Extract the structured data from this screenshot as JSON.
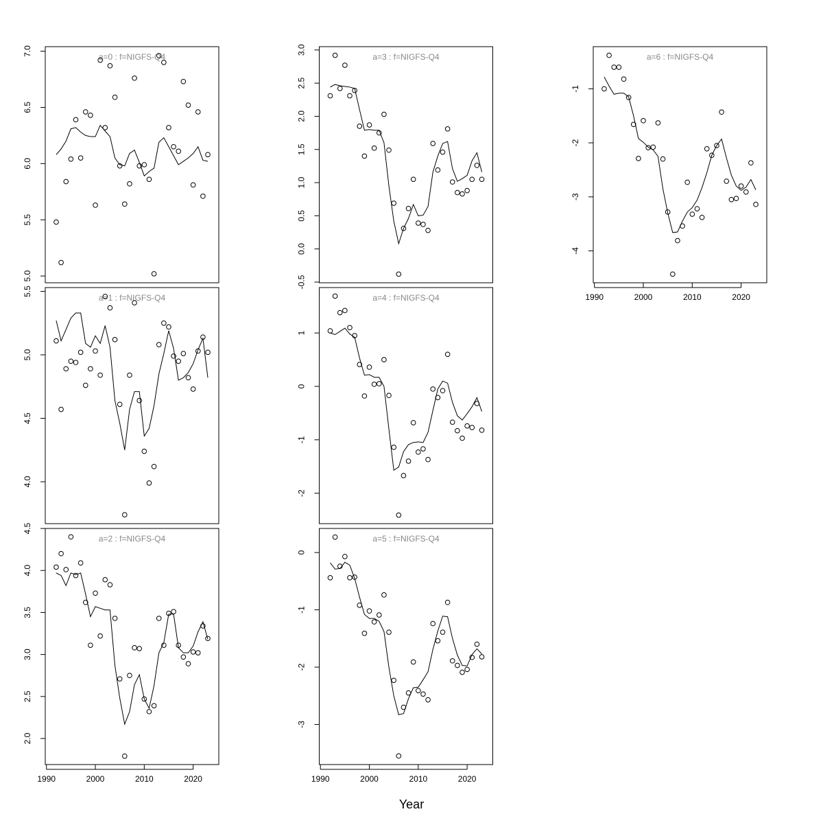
{
  "xlabel": "Year",
  "chart_data": [
    {
      "type": "line",
      "title": "a=0  :  f=NIGFS-Q4",
      "x": [
        1992,
        1993,
        1994,
        1995,
        1996,
        1997,
        1998,
        1999,
        2000,
        2001,
        2002,
        2003,
        2004,
        2005,
        2006,
        2007,
        2008,
        2009,
        2010,
        2011,
        2012,
        2013,
        2014,
        2015,
        2016,
        2017,
        2018,
        2019,
        2020,
        2021,
        2022,
        2023
      ],
      "series": [
        {
          "style": "points",
          "color": "#000000",
          "values": [
            5.48,
            5.12,
            5.84,
            6.04,
            6.39,
            6.05,
            6.46,
            6.43,
            5.63,
            6.92,
            6.32,
            6.87,
            6.59,
            5.98,
            5.64,
            5.82,
            6.76,
            5.98,
            5.99,
            5.86,
            5.02,
            6.96,
            6.9,
            6.32,
            6.15,
            6.11,
            6.73,
            6.52,
            5.81,
            6.46,
            5.71,
            6.08
          ]
        },
        {
          "style": "line",
          "color": "#000000",
          "values": [
            6.08,
            6.13,
            6.2,
            6.31,
            6.32,
            6.28,
            6.25,
            6.24,
            6.24,
            6.34,
            6.29,
            6.24,
            6.05,
            5.99,
            5.98,
            6.09,
            6.12,
            6.01,
            5.89,
            5.93,
            5.96,
            6.19,
            6.23,
            6.15,
            6.07,
            5.99,
            6.02,
            6.05,
            6.09,
            6.15,
            6.03,
            6.02
          ]
        }
      ],
      "xlim": [
        1989.76,
        2025.24
      ],
      "ylim": [
        4.94,
        7.04
      ],
      "yticks": [
        {
          "value": 5,
          "label": "5.0"
        },
        5.5,
        {
          "value": 6,
          "label": "6.0"
        },
        6.5,
        {
          "value": 7,
          "label": "7.0"
        }
      ]
    },
    {
      "type": "line",
      "title": "a=1  :  f=NIGFS-Q4",
      "x": [
        1992,
        1993,
        1994,
        1995,
        1996,
        1997,
        1998,
        1999,
        2000,
        2001,
        2002,
        2003,
        2004,
        2005,
        2006,
        2007,
        2008,
        2009,
        2010,
        2011,
        2012,
        2013,
        2014,
        2015,
        2016,
        2017,
        2018,
        2019,
        2020,
        2021,
        2022,
        2023
      ],
      "series": [
        {
          "style": "points",
          "color": "#000000",
          "values": [
            5.11,
            4.57,
            4.89,
            4.95,
            4.94,
            5.02,
            4.76,
            4.89,
            5.03,
            4.84,
            5.46,
            5.37,
            5.12,
            4.61,
            3.74,
            4.84,
            5.41,
            4.64,
            4.24,
            3.99,
            4.12,
            5.08,
            5.25,
            5.22,
            4.99,
            4.95,
            5.01,
            4.82,
            4.73,
            5.03,
            5.14,
            5.02
          ]
        },
        {
          "style": "line",
          "color": "#000000",
          "values": [
            5.27,
            5.11,
            5.2,
            5.29,
            5.33,
            5.33,
            5.09,
            5.06,
            5.15,
            5.09,
            5.23,
            5.06,
            4.64,
            4.46,
            4.25,
            4.57,
            4.71,
            4.71,
            4.36,
            4.42,
            4.6,
            4.85,
            5.01,
            5.19,
            5.05,
            4.8,
            4.82,
            4.86,
            4.93,
            5.04,
            5.13,
            4.82
          ]
        }
      ],
      "xlim": [
        1989.76,
        2025.24
      ],
      "ylim": [
        3.67,
        5.53
      ],
      "yticks": [
        {
          "value": 4,
          "label": "4.0"
        },
        4.5,
        {
          "value": 5,
          "label": "5.0"
        },
        5.5
      ]
    },
    {
      "type": "line",
      "title": "a=2  :  f=NIGFS-Q4",
      "x": [
        1992,
        1993,
        1994,
        1995,
        1996,
        1997,
        1998,
        1999,
        2000,
        2001,
        2002,
        2003,
        2004,
        2005,
        2006,
        2007,
        2008,
        2009,
        2010,
        2011,
        2012,
        2013,
        2014,
        2015,
        2016,
        2017,
        2018,
        2019,
        2020,
        2021,
        2022,
        2023
      ],
      "series": [
        {
          "style": "points",
          "color": "#000000",
          "values": [
            4.04,
            4.2,
            4.01,
            4.4,
            3.94,
            4.09,
            3.62,
            3.11,
            3.73,
            3.22,
            3.89,
            3.83,
            3.43,
            2.71,
            1.79,
            2.75,
            3.08,
            3.07,
            2.47,
            2.32,
            2.39,
            3.43,
            3.11,
            3.49,
            3.51,
            3.11,
            2.97,
            2.89,
            3.03,
            3.02,
            3.34,
            3.19
          ]
        },
        {
          "style": "line",
          "color": "#000000",
          "values": [
            3.97,
            3.94,
            3.82,
            3.97,
            3.95,
            3.97,
            3.72,
            3.45,
            3.57,
            3.55,
            3.53,
            3.53,
            2.87,
            2.48,
            2.17,
            2.32,
            2.64,
            2.76,
            2.47,
            2.36,
            2.63,
            3.02,
            3.14,
            3.48,
            3.48,
            3.08,
            3.02,
            3.02,
            3.1,
            3.27,
            3.39,
            3.18
          ]
        }
      ],
      "xlim": [
        1989.76,
        2025.24
      ],
      "ylim": [
        1.69,
        4.5
      ],
      "xticks": [
        1990,
        2000,
        2010,
        2020
      ],
      "yticks": [
        {
          "value": 2,
          "label": "2.0"
        },
        2.5,
        {
          "value": 3,
          "label": "3.0"
        },
        3.5,
        {
          "value": 4,
          "label": "4.0"
        },
        4.5
      ]
    },
    {
      "type": "line",
      "title": "a=3  :  f=NIGFS-Q4",
      "x": [
        1992,
        1993,
        1994,
        1995,
        1996,
        1997,
        1998,
        1999,
        2000,
        2001,
        2002,
        2003,
        2004,
        2005,
        2006,
        2007,
        2008,
        2009,
        2010,
        2011,
        2012,
        2013,
        2014,
        2015,
        2016,
        2017,
        2018,
        2019,
        2020,
        2021,
        2022,
        2023
      ],
      "series": [
        {
          "style": "points",
          "color": "#000000",
          "values": [
            2.31,
            2.92,
            2.42,
            2.77,
            2.31,
            2.39,
            1.85,
            1.4,
            1.87,
            1.52,
            1.75,
            2.03,
            1.49,
            0.69,
            -0.38,
            0.31,
            0.61,
            1.05,
            0.39,
            0.37,
            0.28,
            1.59,
            1.19,
            1.46,
            1.81,
            1.01,
            0.85,
            0.83,
            0.88,
            1.05,
            1.26,
            1.05
          ]
        },
        {
          "style": "line",
          "color": "#000000",
          "values": [
            2.44,
            2.48,
            2.46,
            2.45,
            2.44,
            2.42,
            2.1,
            1.79,
            1.8,
            1.79,
            1.79,
            1.6,
            0.95,
            0.42,
            0.08,
            0.31,
            0.46,
            0.67,
            0.5,
            0.51,
            0.64,
            1.16,
            1.4,
            1.59,
            1.62,
            1.21,
            1.02,
            1.06,
            1.11,
            1.33,
            1.45,
            1.16
          ]
        }
      ],
      "xlim": [
        1989.76,
        2025.24
      ],
      "ylim": [
        -0.51,
        3.05
      ],
      "yticks": [
        -0.5,
        {
          "value": 0,
          "label": "0.0"
        },
        0.5,
        {
          "value": 1,
          "label": "1.0"
        },
        1.5,
        {
          "value": 2,
          "label": "2.0"
        },
        2.5,
        {
          "value": 3,
          "label": "3.0"
        }
      ]
    },
    {
      "type": "line",
      "title": "a=4  :  f=NIGFS-Q4",
      "x": [
        1992,
        1993,
        1994,
        1995,
        1996,
        1997,
        1998,
        1999,
        2000,
        2001,
        2002,
        2003,
        2004,
        2005,
        2006,
        2007,
        2008,
        2009,
        2010,
        2011,
        2012,
        2013,
        2014,
        2015,
        2016,
        2017,
        2018,
        2019,
        2020,
        2021,
        2022,
        2023
      ],
      "series": [
        {
          "style": "points",
          "color": "#000000",
          "values": [
            1.04,
            1.69,
            1.38,
            1.42,
            1.1,
            0.95,
            0.41,
            -0.18,
            0.36,
            0.04,
            0.05,
            0.5,
            -0.17,
            -1.14,
            -2.41,
            -1.67,
            -1.4,
            -0.68,
            -1.23,
            -1.17,
            -1.37,
            -0.05,
            -0.21,
            -0.08,
            0.6,
            -0.67,
            -0.83,
            -0.97,
            -0.74,
            -0.77,
            -0.32,
            -0.82
          ]
        },
        {
          "style": "line",
          "color": "#000000",
          "values": [
            1.0,
            0.97,
            1.03,
            1.09,
            0.98,
            0.92,
            0.53,
            0.21,
            0.22,
            0.17,
            0.17,
            0.0,
            -0.8,
            -1.57,
            -1.51,
            -1.22,
            -1.09,
            -1.05,
            -1.04,
            -1.05,
            -0.86,
            -0.45,
            -0.05,
            0.1,
            0.06,
            -0.3,
            -0.55,
            -0.63,
            -0.51,
            -0.38,
            -0.21,
            -0.47
          ]
        }
      ],
      "xlim": [
        1989.76,
        2025.24
      ],
      "ylim": [
        -2.57,
        1.85
      ],
      "yticks": [
        -2,
        -1,
        0,
        1
      ]
    },
    {
      "type": "line",
      "title": "a=5  :  f=NIGFS-Q4",
      "x": [
        1992,
        1993,
        1994,
        1995,
        1996,
        1997,
        1998,
        1999,
        2000,
        2001,
        2002,
        2003,
        2004,
        2005,
        2006,
        2007,
        2008,
        2009,
        2010,
        2011,
        2012,
        2013,
        2014,
        2015,
        2016,
        2017,
        2018,
        2019,
        2020,
        2021,
        2022,
        2023
      ],
      "series": [
        {
          "style": "points",
          "color": "#000000",
          "values": [
            -0.44,
            0.27,
            -0.24,
            -0.07,
            -0.44,
            -0.43,
            -0.92,
            -1.41,
            -1.02,
            -1.21,
            -1.09,
            -0.74,
            -1.39,
            -2.23,
            -3.55,
            -2.7,
            -2.45,
            -1.91,
            -2.41,
            -2.47,
            -2.57,
            -1.24,
            -1.54,
            -1.39,
            -0.87,
            -1.89,
            -1.97,
            -2.09,
            -2.04,
            -1.83,
            -1.6,
            -1.82
          ]
        },
        {
          "style": "line",
          "color": "#000000",
          "values": [
            -0.18,
            -0.29,
            -0.28,
            -0.17,
            -0.22,
            -0.45,
            -0.78,
            -1.08,
            -1.15,
            -1.15,
            -1.2,
            -1.38,
            -2.0,
            -2.5,
            -2.83,
            -2.81,
            -2.55,
            -2.36,
            -2.35,
            -2.22,
            -2.08,
            -1.69,
            -1.37,
            -1.11,
            -1.12,
            -1.5,
            -1.79,
            -1.97,
            -1.98,
            -1.78,
            -1.68,
            -1.77
          ]
        }
      ],
      "xlim": [
        1989.76,
        2025.24
      ],
      "ylim": [
        -3.7,
        0.42
      ],
      "xticks": [
        1990,
        2000,
        2010,
        2020
      ],
      "yticks": [
        -3,
        -2,
        -1,
        0
      ]
    },
    {
      "type": "line",
      "title": "a=6  :  f=NIGFS-Q4",
      "x": [
        1992,
        1993,
        1994,
        1995,
        1996,
        1997,
        1998,
        1999,
        2000,
        2001,
        2002,
        2003,
        2004,
        2005,
        2006,
        2007,
        2008,
        2009,
        2010,
        2011,
        2012,
        2013,
        2014,
        2015,
        2016,
        2017,
        2018,
        2019,
        2020,
        2021,
        2022,
        2023
      ],
      "series": [
        {
          "style": "points",
          "color": "#000000",
          "values": [
            -1.0,
            -0.38,
            -0.6,
            -0.6,
            -0.82,
            -1.16,
            -1.66,
            -2.29,
            -1.59,
            -2.09,
            -2.08,
            -1.63,
            -2.3,
            -3.28,
            -4.43,
            -3.81,
            -3.54,
            -2.73,
            -3.32,
            -3.22,
            -3.38,
            -2.11,
            -2.23,
            -2.05,
            -1.43,
            -2.71,
            -3.05,
            -3.03,
            -2.8,
            -2.91,
            -2.37,
            -3.14
          ]
        },
        {
          "style": "line",
          "color": "#000000",
          "values": [
            -0.78,
            -0.95,
            -1.1,
            -1.08,
            -1.08,
            -1.15,
            -1.5,
            -1.92,
            -1.99,
            -2.08,
            -2.13,
            -2.25,
            -2.85,
            -3.3,
            -3.66,
            -3.65,
            -3.45,
            -3.28,
            -3.2,
            -3.06,
            -2.83,
            -2.55,
            -2.23,
            -2.05,
            -1.93,
            -2.28,
            -2.6,
            -2.8,
            -2.88,
            -2.82,
            -2.68,
            -2.87
          ]
        }
      ],
      "xlim": [
        1989.76,
        2025.24
      ],
      "ylim": [
        -4.59,
        -0.22
      ],
      "xticks": [
        1990,
        2000,
        2010,
        2020
      ],
      "yticks": [
        -4,
        -3,
        -2,
        -1
      ]
    }
  ]
}
